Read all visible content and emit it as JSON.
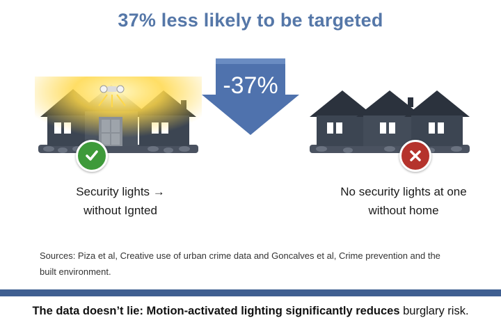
{
  "headline": "37% less likely to be targeted",
  "arrow": {
    "label": "-37%",
    "color": "#4f72ad"
  },
  "left_panel": {
    "label_line1": "Security lights →",
    "label_line2": "without Ignted",
    "badge_icon": "checkmark-icon",
    "badge_color": "#3e9a3a"
  },
  "right_panel": {
    "label_line1": "No security lights at one",
    "label_line2": "without home",
    "badge_icon": "x-mark-icon",
    "badge_color": "#b5332c"
  },
  "sources": "Sources: Piza et al, Creative use of urban crime data and Goncalves et al, Crime prevention and the built environment.",
  "footer": {
    "bold_text": "The data doesn’t lie: Motion-activated lighting significantly reduces",
    "plain_text": " burglary risk."
  },
  "colors": {
    "headline": "#5577a8",
    "band": "#3f5f91",
    "house": "#3c4552",
    "roof": "#2b323d",
    "light_glow": "#ffd84a"
  }
}
